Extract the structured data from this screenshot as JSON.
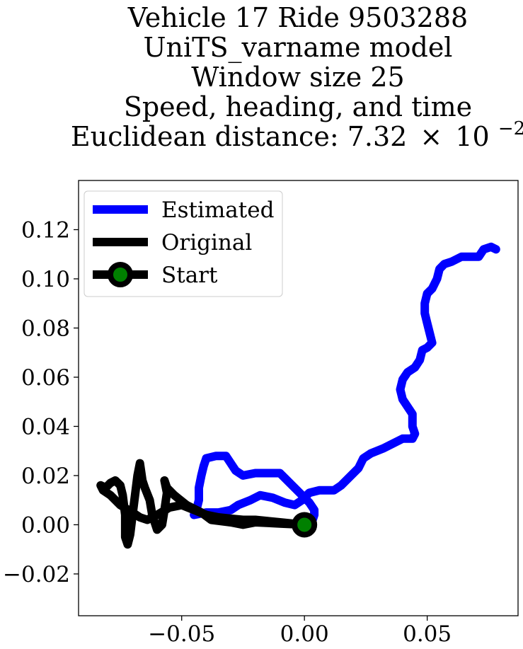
{
  "chart_data": {
    "type": "line",
    "title_lines": [
      "Vehicle 17 Ride 9503288",
      "UniTS_varname model",
      "Window size 25",
      "Speed, heading, and time"
    ],
    "title_distance_prefix": "Euclidean distance: 7.32",
    "title_distance_times": "×",
    "title_distance_base": "10",
    "title_distance_exp": "−2",
    "xlabel": "",
    "ylabel": "",
    "xlim": [
      -0.092,
      0.087
    ],
    "ylim": [
      -0.037,
      0.14
    ],
    "x_ticks": [
      -0.05,
      0.0,
      0.05
    ],
    "x_tick_labels": [
      "−0.05",
      "0.00",
      "0.05"
    ],
    "y_ticks": [
      -0.02,
      0.0,
      0.02,
      0.04,
      0.06,
      0.08,
      0.1,
      0.12
    ],
    "y_tick_labels": [
      "−0.02",
      "0.00",
      "0.02",
      "0.04",
      "0.06",
      "0.08",
      "0.10",
      "0.12"
    ],
    "grid": false,
    "legend_placement": "top-left",
    "series": [
      {
        "name": "Estimated",
        "color": "#0000ff",
        "points": [
          [
            0.0,
            0.0
          ],
          [
            0.003,
            0.001
          ],
          [
            0.004,
            0.004
          ],
          [
            0.004,
            0.006
          ],
          [
            0.002,
            0.009
          ],
          [
            0.0,
            0.011
          ],
          [
            -0.003,
            0.014
          ],
          [
            -0.006,
            0.017
          ],
          [
            -0.008,
            0.019
          ],
          [
            -0.01,
            0.021
          ],
          [
            -0.015,
            0.021
          ],
          [
            -0.02,
            0.021
          ],
          [
            -0.025,
            0.02
          ],
          [
            -0.028,
            0.022
          ],
          [
            -0.03,
            0.025
          ],
          [
            -0.032,
            0.028
          ],
          [
            -0.036,
            0.028
          ],
          [
            -0.04,
            0.027
          ],
          [
            -0.041,
            0.024
          ],
          [
            -0.042,
            0.02
          ],
          [
            -0.043,
            0.015
          ],
          [
            -0.043,
            0.01
          ],
          [
            -0.044,
            0.006
          ],
          [
            -0.045,
            0.004
          ],
          [
            -0.04,
            0.005
          ],
          [
            -0.035,
            0.005
          ],
          [
            -0.03,
            0.006
          ],
          [
            -0.027,
            0.008
          ],
          [
            -0.022,
            0.01
          ],
          [
            -0.018,
            0.012
          ],
          [
            -0.013,
            0.011
          ],
          [
            -0.008,
            0.009
          ],
          [
            -0.004,
            0.008
          ],
          [
            -0.001,
            0.01
          ],
          [
            0.002,
            0.013
          ],
          [
            0.006,
            0.014
          ],
          [
            0.012,
            0.014
          ],
          [
            0.015,
            0.016
          ],
          [
            0.019,
            0.02
          ],
          [
            0.022,
            0.023
          ],
          [
            0.024,
            0.027
          ],
          [
            0.027,
            0.029
          ],
          [
            0.032,
            0.031
          ],
          [
            0.036,
            0.033
          ],
          [
            0.04,
            0.035
          ],
          [
            0.044,
            0.035
          ],
          [
            0.045,
            0.037
          ],
          [
            0.044,
            0.04
          ],
          [
            0.044,
            0.045
          ],
          [
            0.042,
            0.048
          ],
          [
            0.04,
            0.051
          ],
          [
            0.039,
            0.055
          ],
          [
            0.04,
            0.059
          ],
          [
            0.042,
            0.062
          ],
          [
            0.045,
            0.064
          ],
          [
            0.047,
            0.067
          ],
          [
            0.048,
            0.071
          ],
          [
            0.05,
            0.072
          ],
          [
            0.052,
            0.074
          ],
          [
            0.051,
            0.078
          ],
          [
            0.05,
            0.082
          ],
          [
            0.049,
            0.086
          ],
          [
            0.049,
            0.09
          ],
          [
            0.05,
            0.094
          ],
          [
            0.052,
            0.096
          ],
          [
            0.054,
            0.1
          ],
          [
            0.055,
            0.104
          ],
          [
            0.057,
            0.106
          ],
          [
            0.06,
            0.107
          ],
          [
            0.064,
            0.109
          ],
          [
            0.068,
            0.109
          ],
          [
            0.071,
            0.109
          ],
          [
            0.073,
            0.112
          ],
          [
            0.076,
            0.113
          ],
          [
            0.078,
            0.112
          ]
        ]
      },
      {
        "name": "Original",
        "color": "#000000",
        "points": [
          [
            0.0,
            0.0
          ],
          [
            -0.01,
            0.0005
          ],
          [
            -0.02,
            0.001
          ],
          [
            -0.025,
            0.0
          ],
          [
            -0.03,
            0.001
          ],
          [
            -0.038,
            0.002
          ],
          [
            -0.042,
            0.005
          ],
          [
            -0.048,
            0.008
          ],
          [
            -0.053,
            0.012
          ],
          [
            -0.056,
            0.015
          ],
          [
            -0.057,
            0.018
          ],
          [
            -0.056,
            0.013
          ],
          [
            -0.057,
            0.006
          ],
          [
            -0.058,
            0.0
          ],
          [
            -0.06,
            -0.002
          ],
          [
            -0.062,
            0.004
          ],
          [
            -0.063,
            0.01
          ],
          [
            -0.065,
            0.015
          ],
          [
            -0.066,
            0.018
          ],
          [
            -0.067,
            0.025
          ],
          [
            -0.068,
            0.02
          ],
          [
            -0.069,
            0.012
          ],
          [
            -0.07,
            0.004
          ],
          [
            -0.071,
            -0.004
          ],
          [
            -0.072,
            -0.008
          ],
          [
            -0.073,
            -0.005
          ],
          [
            -0.073,
            0.004
          ],
          [
            -0.074,
            0.012
          ],
          [
            -0.075,
            0.016
          ],
          [
            -0.077,
            0.018
          ],
          [
            -0.079,
            0.017
          ],
          [
            -0.081,
            0.015
          ],
          [
            -0.083,
            0.016
          ],
          [
            -0.082,
            0.014
          ],
          [
            -0.079,
            0.012
          ],
          [
            -0.075,
            0.008
          ],
          [
            -0.07,
            0.005
          ],
          [
            -0.067,
            0.003
          ],
          [
            -0.064,
            0.002
          ],
          [
            -0.06,
            0.004
          ],
          [
            -0.055,
            0.007
          ],
          [
            -0.05,
            0.008
          ],
          [
            -0.045,
            0.006
          ],
          [
            -0.04,
            0.004
          ],
          [
            -0.035,
            0.003
          ],
          [
            -0.03,
            0.0025
          ],
          [
            -0.025,
            0.002
          ],
          [
            -0.02,
            0.002
          ],
          [
            -0.015,
            0.0015
          ],
          [
            -0.01,
            0.001
          ],
          [
            -0.005,
            0.0005
          ],
          [
            0.0,
            0.0
          ]
        ]
      }
    ],
    "start": {
      "name": "Start",
      "x": 0.0,
      "y": 0.0,
      "marker_fill": "#008000",
      "marker_edge": "#000000"
    },
    "legend": [
      "Estimated",
      "Original",
      "Start"
    ]
  }
}
